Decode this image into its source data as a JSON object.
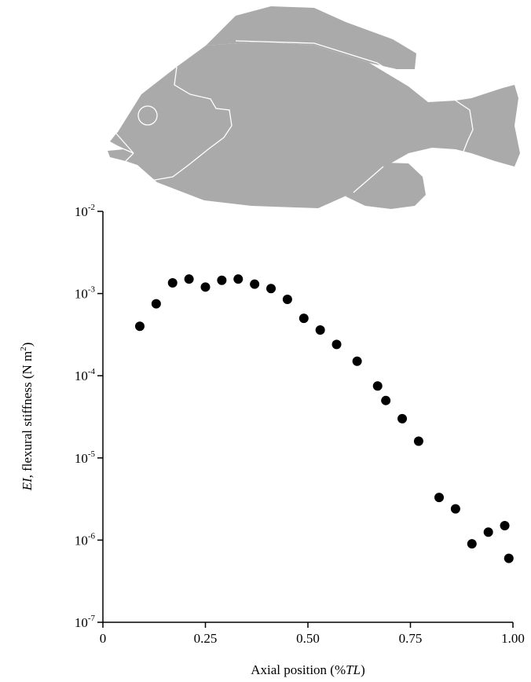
{
  "chart_data": {
    "type": "scatter",
    "x_label": {
      "text": "Axial position (%",
      "italic": "TL",
      "end": ")"
    },
    "y_label": {
      "italic": "EI",
      "text": ", flexural stiffness (N m",
      "sup": "2",
      "end": ")"
    },
    "x": [
      0.09,
      0.13,
      0.17,
      0.21,
      0.25,
      0.29,
      0.33,
      0.37,
      0.41,
      0.45,
      0.49,
      0.53,
      0.57,
      0.62,
      0.67,
      0.69,
      0.73,
      0.77,
      0.82,
      0.86,
      0.9,
      0.94,
      0.98,
      0.99
    ],
    "values": [
      0.0004,
      0.00075,
      0.00135,
      0.0015,
      0.0012,
      0.00145,
      0.0015,
      0.0013,
      0.00115,
      0.00085,
      0.0005,
      0.00036,
      0.00024,
      0.00015,
      7.5e-05,
      5e-05,
      3e-05,
      1.6e-05,
      3.3e-06,
      2.4e-06,
      9e-07,
      1.25e-06,
      1.5e-06,
      6e-07
    ],
    "color": "#000000",
    "xlim": [
      0,
      1
    ],
    "ylim": [
      1e-07,
      0.01
    ],
    "log_y": true,
    "xticks": [
      0,
      0.25,
      {
        "value": 0.5,
        "label": "0.50"
      },
      0.75,
      {
        "value": 1,
        "label": "1.00"
      }
    ],
    "yticks": [
      {
        "value": 1e-07,
        "label": "10",
        "sup": "-7"
      },
      {
        "value": 1e-06,
        "label": "10",
        "sup": "-6"
      },
      {
        "value": 1e-05,
        "label": "10",
        "sup": "-5"
      },
      {
        "value": 0.0001,
        "label": "10",
        "sup": "-4"
      },
      {
        "value": 0.001,
        "label": "10",
        "sup": "-3"
      },
      {
        "value": 0.01,
        "label": "10",
        "sup": "-2"
      }
    ]
  }
}
